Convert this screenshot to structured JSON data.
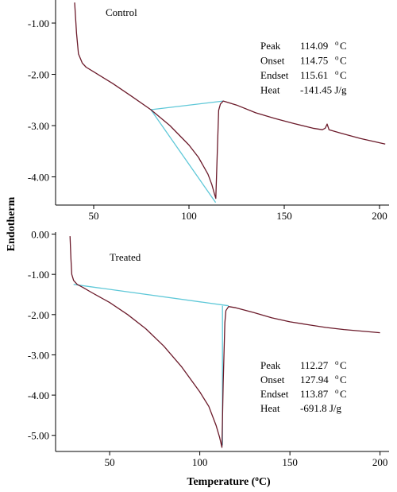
{
  "figure": {
    "ylabel": "Endotherm",
    "xlabel_main": "Temperature (",
    "xlabel_sup": "o",
    "xlabel_end": "C)",
    "colors": {
      "curve": "#6b1a2a",
      "baseline": "#5fc8d8",
      "axis": "#000000"
    }
  },
  "chart_data": [
    {
      "type": "line",
      "title": "Control",
      "xlim": [
        30,
        205
      ],
      "ylim": [
        -4.55,
        -0.55
      ],
      "x_ticks": [
        50,
        100,
        150,
        200
      ],
      "y_ticks": [
        -1.0,
        -2.0,
        -3.0,
        -4.0
      ],
      "x_tick_labels": [
        "50",
        "100",
        "150",
        "200"
      ],
      "y_tick_labels": [
        "-1.00",
        "-2.00",
        "-3.00",
        "-4.00"
      ],
      "annotation": [
        {
          "label": "Peak",
          "value": "114.09",
          "unit": "C"
        },
        {
          "label": "Onset",
          "value": "114.75",
          "unit": "C"
        },
        {
          "label": "Endset",
          "value": "115.61",
          "unit": "C"
        },
        {
          "label": "Heat",
          "value": "-141.45 J/g",
          "unit": ""
        }
      ],
      "series": [
        {
          "x": [
            40,
            41,
            42,
            44,
            46,
            50,
            60,
            70,
            80,
            90,
            100,
            105,
            110,
            112,
            113.5,
            114.1,
            114.8,
            115.6,
            116.5,
            118,
            125,
            135,
            145,
            155,
            165,
            170,
            171.5,
            172.5,
            173.5,
            180,
            190,
            203
          ],
          "y": [
            -0.6,
            -1.2,
            -1.6,
            -1.78,
            -1.86,
            -1.95,
            -2.18,
            -2.43,
            -2.69,
            -3.0,
            -3.38,
            -3.62,
            -3.95,
            -4.15,
            -4.35,
            -4.42,
            -3.6,
            -2.7,
            -2.58,
            -2.52,
            -2.6,
            -2.75,
            -2.86,
            -2.96,
            -3.05,
            -3.08,
            -3.05,
            -2.97,
            -3.08,
            -3.15,
            -3.25,
            -3.36
          ]
        }
      ],
      "baseline_segments": [
        {
          "x": [
            80,
            118
          ],
          "y": [
            -2.69,
            -2.52
          ]
        },
        {
          "x": [
            80,
            114
          ],
          "y": [
            -2.69,
            -4.5
          ]
        }
      ]
    },
    {
      "type": "line",
      "title": "Treated",
      "xlim": [
        20,
        205
      ],
      "ylim": [
        -5.4,
        0.05
      ],
      "x_ticks": [
        50,
        100,
        150,
        200
      ],
      "y_ticks": [
        0.0,
        -1.0,
        -2.0,
        -3.0,
        -4.0,
        -5.0
      ],
      "x_tick_labels": [
        "50",
        "100",
        "150",
        "200"
      ],
      "y_tick_labels": [
        "0.00",
        "-1.00",
        "-2.00",
        "-3.00",
        "-4.00",
        "-5.00"
      ],
      "annotation": [
        {
          "label": "Peak",
          "value": "112.27",
          "unit": "C"
        },
        {
          "label": "Onset",
          "value": "127.94",
          "unit": "C"
        },
        {
          "label": "Endset",
          "value": "113.87",
          "unit": "C"
        },
        {
          "label": "Heat",
          "value": "-691.8 J/g",
          "unit": ""
        }
      ],
      "series": [
        {
          "x": [
            28,
            28.5,
            29,
            30,
            32,
            35,
            40,
            50,
            60,
            70,
            80,
            90,
            100,
            105,
            109,
            111,
            112.3,
            113,
            113.9,
            114.5,
            116,
            120,
            130,
            140,
            150,
            160,
            170,
            180,
            190,
            200
          ],
          "y": [
            -0.05,
            -0.6,
            -1.0,
            -1.15,
            -1.25,
            -1.32,
            -1.45,
            -1.7,
            -2.0,
            -2.35,
            -2.78,
            -3.3,
            -3.92,
            -4.28,
            -4.75,
            -5.05,
            -5.3,
            -3.7,
            -2.2,
            -1.9,
            -1.8,
            -1.83,
            -1.95,
            -2.08,
            -2.18,
            -2.25,
            -2.32,
            -2.37,
            -2.41,
            -2.45
          ]
        }
      ],
      "baseline_segments": [
        {
          "x": [
            30,
            116
          ],
          "y": [
            -1.25,
            -1.78
          ]
        },
        {
          "x": [
            112.6,
            112.6
          ],
          "y": [
            -1.78,
            -5.25
          ]
        }
      ]
    }
  ]
}
